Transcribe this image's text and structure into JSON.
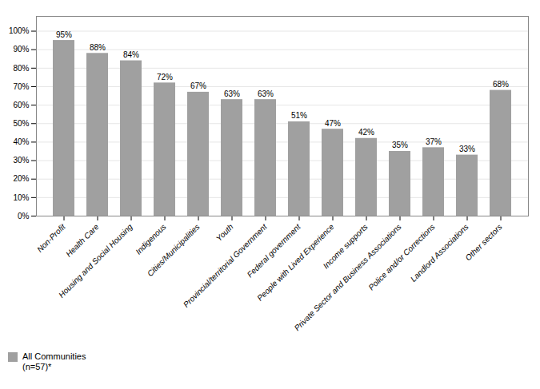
{
  "chart_data": {
    "type": "bar",
    "categories": [
      "Non-Profit",
      "Health Care",
      "Housing and Social Housing",
      "Indigenous",
      "Cities/Municipalities",
      "Youth",
      "Provincial/territorial Government",
      "Federal government",
      "People with Lived Experience",
      "Income supports",
      "Private Sector and Business Associations",
      "Police and/or Corrections",
      "Landlord Associations",
      "Other sectors"
    ],
    "series": [
      {
        "name": "All Communities\n(n=57)*",
        "color": "#A0A0A0",
        "values": [
          95,
          88,
          84,
          72,
          67,
          63,
          63,
          51,
          47,
          42,
          35,
          37,
          33,
          68
        ],
        "value_labels": [
          "95%",
          "88%",
          "84%",
          "72%",
          "67%",
          "63%",
          "63%",
          "51%",
          "47%",
          "42%",
          "35%",
          "37%",
          "33%",
          "68%"
        ]
      }
    ],
    "ylim": [
      0,
      108
    ],
    "yticks": [
      {
        "value": 0,
        "label": "0%"
      },
      {
        "value": 10,
        "label": "10%"
      },
      {
        "value": 20,
        "label": "20%"
      },
      {
        "value": 30,
        "label": "30%"
      },
      {
        "value": 40,
        "label": "40%"
      },
      {
        "value": 50,
        "label": "50%"
      },
      {
        "value": 60,
        "label": "60%"
      },
      {
        "value": 70,
        "label": "70%"
      },
      {
        "value": 80,
        "label": "80%"
      },
      {
        "value": 90,
        "label": "90%"
      },
      {
        "value": 100,
        "label": "100%"
      }
    ],
    "grid": true,
    "data_labels": true,
    "legend": "bottom"
  }
}
